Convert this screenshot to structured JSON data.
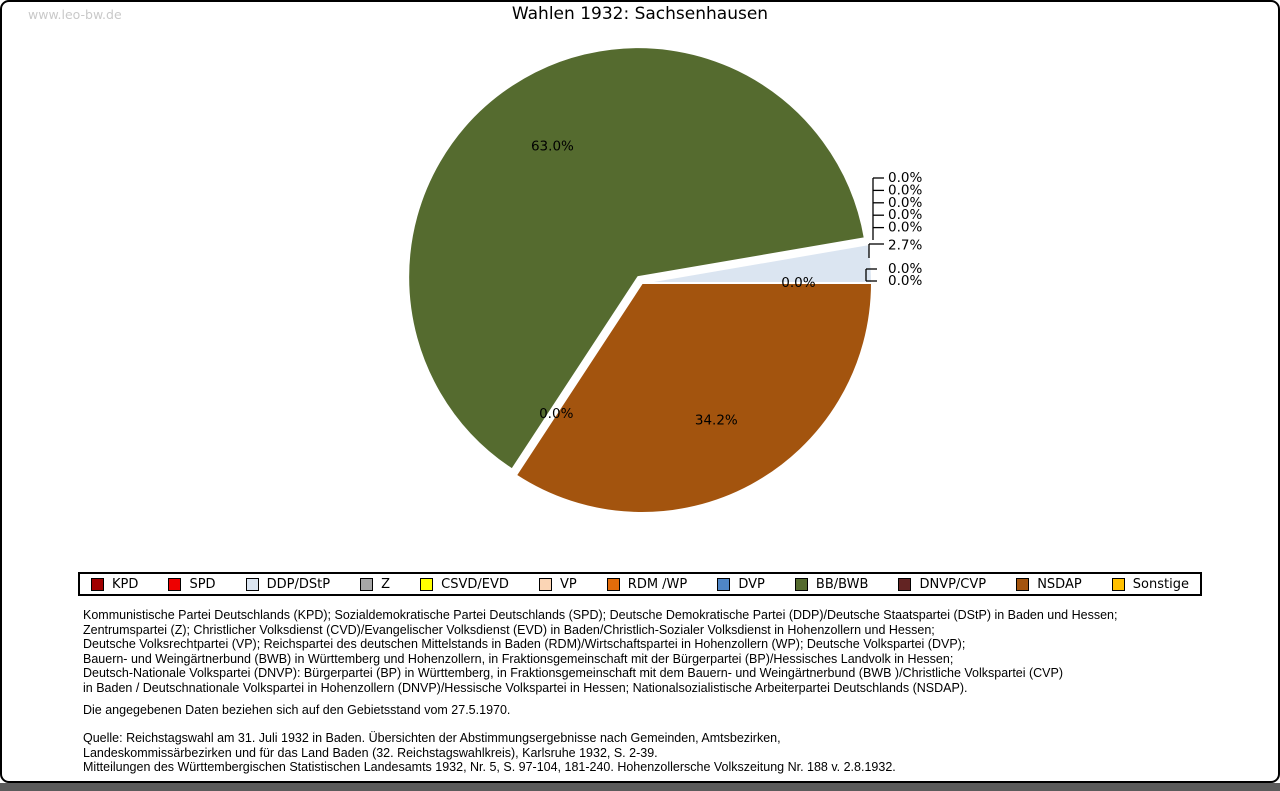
{
  "page": {
    "watermark": "www.leo-bw.de",
    "title": "Wahlen 1932: Sachsenhausen"
  },
  "chart_data": {
    "type": "pie",
    "title": "Wahlen 1932: Sachsenhausen",
    "unit": "percent",
    "direction": "counterclockwise",
    "start_angle_deg": 0,
    "exploded_slice": "BB/BWB",
    "slices": [
      {
        "label": "KPD",
        "value": 0.0,
        "display": "0.0%",
        "color": "#A00000",
        "label_placement": "callout_lower"
      },
      {
        "label": "SPD",
        "value": 0.0,
        "display": "0.0%",
        "color": "#EE0000",
        "label_placement": "callout_lower"
      },
      {
        "label": "DDP/DStP",
        "value": 2.7,
        "display": "2.7%",
        "color": "#DBE5F1",
        "label_placement": "callout_mid"
      },
      {
        "label": "Z",
        "value": 0.0,
        "display": "0.0%",
        "color": "#A6A6A6",
        "label_placement": "callout_upper"
      },
      {
        "label": "CSVD/EVD",
        "value": 0.0,
        "display": "0.0%",
        "color": "#FFFF00",
        "label_placement": "callout_upper"
      },
      {
        "label": "VP",
        "value": 0.0,
        "display": "0.0%",
        "color": "#FBD5B5",
        "label_placement": "callout_upper"
      },
      {
        "label": "RDM /WP",
        "value": 0.0,
        "display": "0.0%",
        "color": "#E36C0A",
        "label_placement": "callout_upper"
      },
      {
        "label": "DVP",
        "value": 0.0,
        "display": "0.0%",
        "color": "#4F86C6",
        "label_placement": "callout_upper"
      },
      {
        "label": "BB/BWB",
        "value": 63.0,
        "display": "63.0%",
        "color": "#556B2F",
        "label_placement": "inside",
        "exploded": true
      },
      {
        "label": "DNVP/CVP",
        "value": 0.0,
        "display": "0.0%",
        "color": "#632423",
        "label_placement": "inside"
      },
      {
        "label": "NSDAP",
        "value": 34.2,
        "display": "34.2%",
        "color": "#A3540E",
        "label_placement": "inside"
      },
      {
        "label": "Sonstige",
        "value": 0.0,
        "display": "0.0%",
        "color": "#FFC000",
        "label_placement": "inside"
      }
    ]
  },
  "footnotes": {
    "party_definitions": [
      "Kommunistische Partei Deutschlands (KPD); Sozialdemokratische Partei Deutschlands (SPD); Deutsche Demokratische Partei (DDP)/Deutsche Staatspartei (DStP) in Baden und Hessen;",
      "Zentrumspartei (Z); Christlicher Volksdienst (CVD)/Evangelischer Volksdienst (EVD) in Baden/Christlich-Sozialer Volksdienst in Hohenzollern und Hessen;",
      "Deutsche Volksrechtpartei (VP); Reichspartei des deutschen Mittelstands in Baden (RDM)/Wirtschaftspartei in Hohenzollern (WP); Deutsche Volkspartei (DVP);",
      "Bauern- und Weingärtnerbund (BWB) in Württemberg und Hohenzollern, in Fraktionsgemeinschaft mit der Bürgerpartei (BP)/Hessisches Landvolk in Hessen;",
      "Deutsch-Nationale Volkspartei (DNVP): Bürgerpartei (BP) in Württemberg, in Fraktionsgemeinschaft mit dem Bauern- und Weingärtnerbund (BWB )/Christliche Volkspartei (CVP)",
      "in Baden / Deutschnationale Volkspartei in Hohenzollern (DNVP)/Hessische Volkspartei in Hessen; Nationalsozialistische Arbeiterpartei Deutschlands (NSDAP)."
    ],
    "gebietsstand": "Die angegebenen Daten beziehen sich auf den Gebietsstand vom 27.5.1970.",
    "quelle": [
      "Quelle: Reichstagswahl am 31. Juli 1932 in Baden. Übersichten der Abstimmungsergebnisse nach Gemeinden, Amtsbezirken,",
      "Landeskommissärbezirken und für das Land Baden (32. Reichstagswahlkreis), Karlsruhe 1932, S. 2-39.",
      "Mitteilungen des Württembergischen Statistischen Landesamts 1932, Nr. 5, S. 97-104, 181-240. Hohenzollersche Volkszeitung Nr. 188 v. 2.8.1932."
    ]
  }
}
